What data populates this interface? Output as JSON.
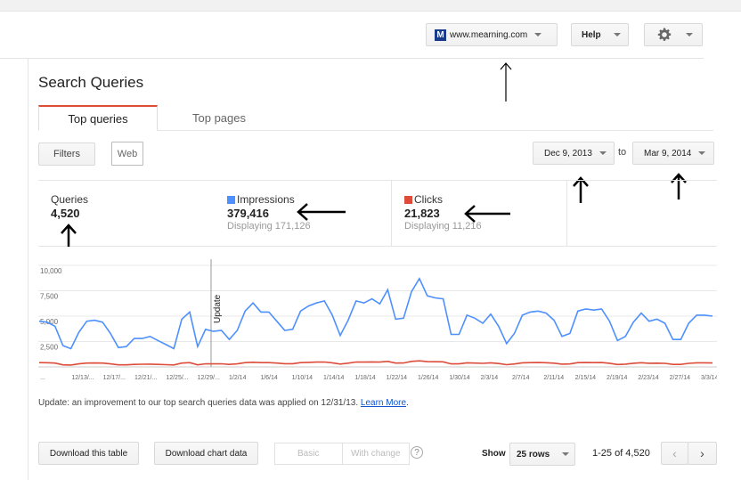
{
  "header": {
    "site_label": "www.mearning.com",
    "site_icon_letter": "M",
    "help_label": "Help",
    "settings_icon": "gear-icon"
  },
  "page_title": "Search Queries",
  "tabs": [
    {
      "label": "Top queries",
      "active": true
    },
    {
      "label": "Top pages",
      "active": false
    }
  ],
  "filters": {
    "filters_label": "Filters",
    "web_label": "Web"
  },
  "date_range": {
    "from": "Dec 9, 2013",
    "to_word": "to",
    "to": "Mar 9, 2014"
  },
  "stats": {
    "queries": {
      "label": "Queries",
      "value": "4,520"
    },
    "impressions": {
      "label": "Impressions",
      "value": "379,416",
      "sub": "Displaying 171,126",
      "color": "#4d90fe"
    },
    "clicks": {
      "label": "Clicks",
      "value": "21,823",
      "sub": "Displaying 11,216",
      "color": "#dd4b39"
    }
  },
  "chart_data": {
    "type": "line",
    "y_ticks": [
      "10,000",
      "7,500",
      "5,000",
      "2,500"
    ],
    "ylim": [
      0,
      10000
    ],
    "x_ticks": [
      "...",
      "12/13/...",
      "12/17/...",
      "12/21/...",
      "12/25/...",
      "12/29/...",
      "1/2/14",
      "1/6/14",
      "1/10/14",
      "1/14/14",
      "1/18/14",
      "1/22/14",
      "1/26/14",
      "1/30/14",
      "2/3/14",
      "2/7/14",
      "2/11/14",
      "2/15/14",
      "2/19/14",
      "2/23/14",
      "2/27/14",
      "3/3/14"
    ],
    "annotation": "Update",
    "series": [
      {
        "name": "Impressions",
        "color": "#4d90fe",
        "values": [
          4500,
          4400,
          4000,
          2100,
          1800,
          3400,
          4500,
          4600,
          4400,
          3300,
          1900,
          2000,
          2800,
          2800,
          3000,
          2600,
          2200,
          1800,
          4700,
          5400,
          2000,
          3700,
          3500,
          3600,
          2700,
          3600,
          5500,
          6300,
          5400,
          5400,
          4500,
          3600,
          3700,
          5500,
          6000,
          6300,
          6500,
          5100,
          3100,
          4600,
          6500,
          6300,
          6700,
          6200,
          7600,
          4700,
          4800,
          7400,
          8700,
          7000,
          6800,
          6700,
          3200,
          3200,
          5100,
          4800,
          4300,
          5200,
          4000,
          2300,
          3300,
          5100,
          5400,
          5500,
          5300,
          4600,
          3000,
          3300,
          5500,
          5700,
          5600,
          5700,
          4500,
          2600,
          3000,
          4400,
          5300,
          4500,
          4700,
          4300,
          2700,
          2700,
          4300,
          5100,
          5100,
          5000
        ]
      },
      {
        "name": "Clicks",
        "color": "#dd4b39",
        "values": [
          420,
          410,
          380,
          200,
          180,
          300,
          380,
          390,
          380,
          300,
          200,
          200,
          250,
          260,
          270,
          250,
          220,
          190,
          380,
          420,
          200,
          310,
          300,
          310,
          250,
          300,
          420,
          460,
          420,
          420,
          380,
          320,
          320,
          420,
          450,
          470,
          480,
          400,
          280,
          370,
          480,
          470,
          490,
          470,
          540,
          380,
          390,
          540,
          600,
          520,
          510,
          500,
          300,
          300,
          400,
          380,
          350,
          400,
          330,
          220,
          290,
          400,
          420,
          430,
          410,
          370,
          270,
          290,
          420,
          430,
          420,
          430,
          360,
          240,
          270,
          360,
          410,
          360,
          370,
          350,
          250,
          250,
          350,
          400,
          400,
          390
        ]
      }
    ]
  },
  "update_note": {
    "text": "Update: an improvement to our top search queries data was applied on 12/31/13.",
    "link": "Learn More",
    "suffix": "."
  },
  "footer": {
    "download_table": "Download this table",
    "download_chart": "Download chart data",
    "basic": "Basic",
    "with_change": "With change",
    "help_glyph": "?",
    "show_label": "Show",
    "rows_select": "25 rows",
    "range_text": "1-25 of 4,520",
    "prev_glyph": "‹",
    "next_glyph": "›"
  }
}
